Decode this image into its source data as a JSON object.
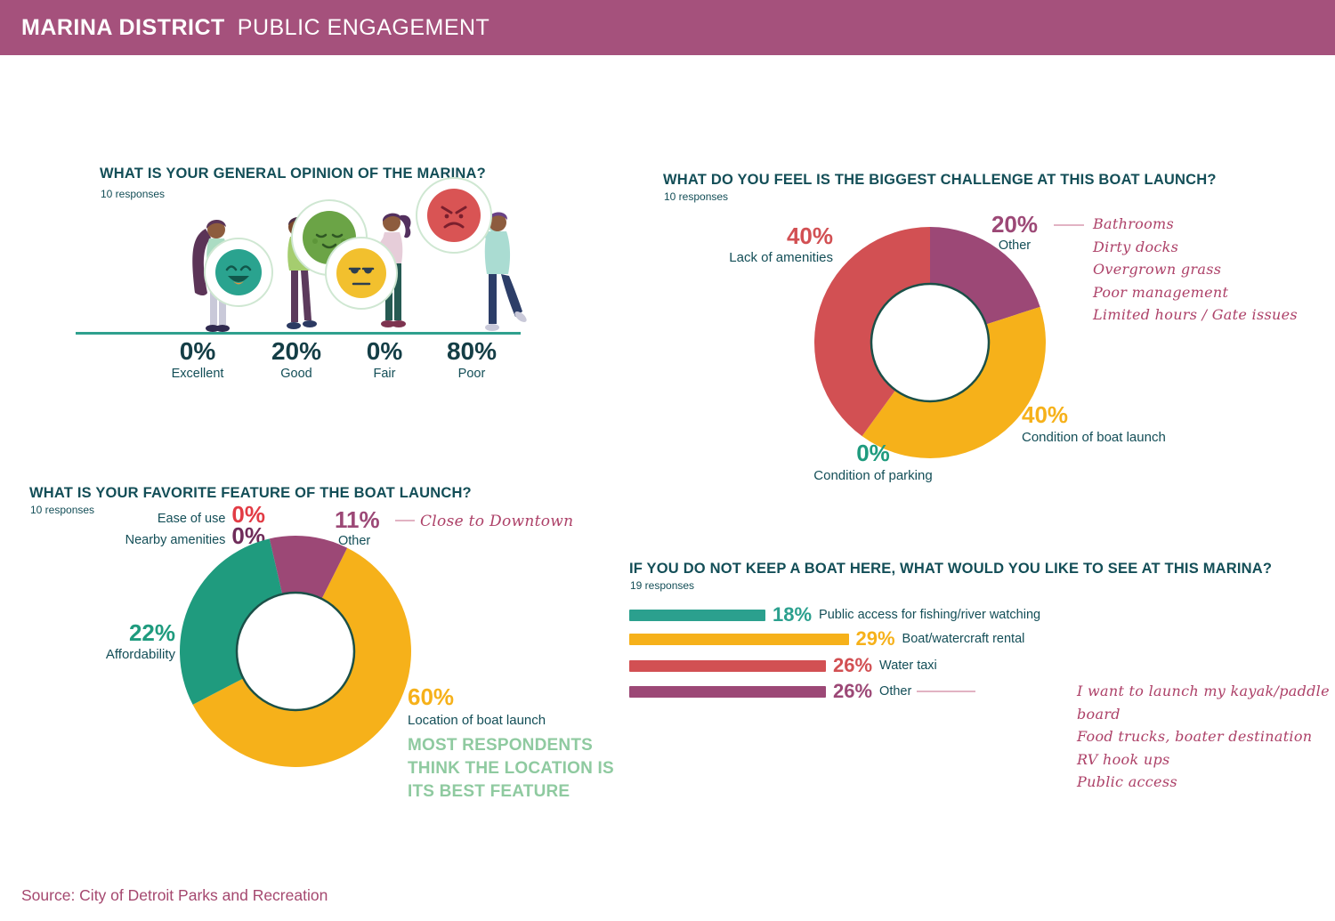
{
  "header": {
    "title_bold": "MARINA DISTRICT",
    "title_light": "PUBLIC ENGAGEMENT"
  },
  "source": "Source: City of Detroit Parks and Recreation",
  "palette": {
    "header_bg": "#a5517c",
    "dark_teal_text": "#134e57",
    "darker_teal_number": "#143e46",
    "teal": "#2ba08e",
    "yellow": "#f6b11a",
    "red": "#d25053",
    "plum": "#9c4876",
    "bright_red": "#e23b44",
    "dark_plum": "#6f2c5a",
    "teal_green": "#1f9b7e",
    "caption_green": "#8fcaa0",
    "handwriting_ink": "#ad4168",
    "connector_pink": "#e2b3c3",
    "ground_line": "#2fa08e",
    "donut_ring": "#1b5048",
    "source_text": "#a5486f"
  },
  "chart_data": [
    {
      "id": "opinion",
      "type": "bar",
      "style": "pictogram-people-holding-emoji-faces",
      "title": "WHAT IS YOUR GENERAL OPINION OF THE MARINA?",
      "subtitle": "10 responses",
      "categories": [
        "Excellent",
        "Good",
        "Fair",
        "Poor"
      ],
      "values": [
        0,
        20,
        0,
        80
      ],
      "value_labels": [
        "0%",
        "20%",
        "0%",
        "80%"
      ],
      "emoji": [
        "grinning-teal-face",
        "content-green-face",
        "unamused-yellow-face",
        "angry-red-face"
      ]
    },
    {
      "id": "challenge",
      "type": "pie",
      "donut": true,
      "title": "WHAT DO YOU FEEL IS THE BIGGEST CHALLENGE AT THIS BOAT LAUNCH?",
      "subtitle": "10 responses",
      "labels": [
        "Other",
        "Condition of boat launch",
        "Condition of parking",
        "Lack of amenities"
      ],
      "values": [
        20,
        40,
        0,
        40
      ],
      "value_labels": [
        "20%",
        "40%",
        "0%",
        "40%"
      ],
      "colors": [
        "#9c4876",
        "#f6b11a",
        "#1f9b7e",
        "#d25053"
      ],
      "annotations": [
        "Bathrooms",
        "Dirty docks",
        "Overgrown grass",
        "Poor management",
        "Limited hours / Gate issues"
      ]
    },
    {
      "id": "favorite",
      "type": "pie",
      "donut": true,
      "title": "WHAT IS YOUR FAVORITE FEATURE OF THE BOAT LAUNCH?",
      "subtitle": "10 responses",
      "labels": [
        "Ease of use",
        "Nearby amenities",
        "Other",
        "Location of boat launch",
        "Affordability"
      ],
      "values": [
        0,
        0,
        11,
        60,
        22
      ],
      "value_labels": [
        "0%",
        "0%",
        "11%",
        "60%",
        "22%"
      ],
      "colors": [
        "#e23b44",
        "#6f2c5a",
        "#9c4876",
        "#f6b11a",
        "#1f9b7e"
      ],
      "annotations": [
        "Close to Downtown"
      ],
      "caption": "MOST RESPONDENTS THINK THE LOCATION IS ITS BEST FEATURE"
    },
    {
      "id": "wishlist",
      "type": "bar",
      "title": "IF YOU DO NOT KEEP A BOAT HERE, WHAT WOULD YOU LIKE TO SEE AT THIS MARINA?",
      "subtitle": "19 responses",
      "categories": [
        "Public access for fishing/river watching",
        "Boat/watercraft rental",
        "Water taxi",
        "Other"
      ],
      "values": [
        18,
        29,
        26,
        26
      ],
      "value_labels": [
        "18%",
        "29%",
        "26%",
        "26%"
      ],
      "colors": [
        "#2ba08e",
        "#f6b11a",
        "#d25053",
        "#9c4876"
      ],
      "annotations": [
        "I want to launch my kayak/paddle board",
        "Food trucks, boater destination",
        "RV hook ups",
        "Public access"
      ]
    }
  ]
}
